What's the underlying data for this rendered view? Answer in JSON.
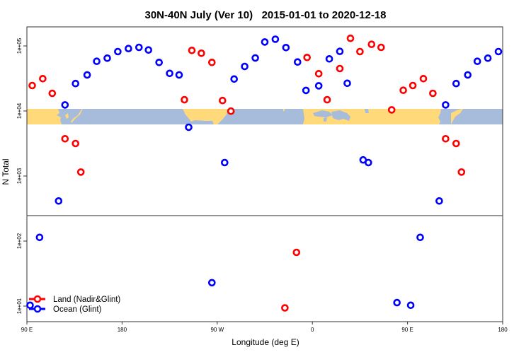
{
  "chart_data": {
    "type": "scatter",
    "title": "30N-40N July (Ver 10)   2015-01-01 to 2020-12-18",
    "xlabel": "Longitude (deg E)",
    "ylabel": "N Total",
    "yscale": "log",
    "ylim": [
      6,
      200000
    ],
    "xrange_deg_east": [
      90,
      540
    ],
    "x_tick_values": [
      90,
      180,
      270,
      360,
      450,
      540
    ],
    "x_tick_labels": [
      "90 E",
      "180",
      "90 W",
      "0",
      "90 E",
      "180"
    ],
    "y_tick_values": [
      10,
      100,
      1000,
      10000,
      100000
    ],
    "y_tick_labels": [
      "1e+01",
      "1e+02",
      "1e+03",
      "1e+04",
      "1e+05"
    ],
    "legend_position": "bottom-left",
    "colors": {
      "land": "#ff0000",
      "ocean": "#0000ff",
      "map_land": "#ffd97a",
      "map_ocean": "#a7bcdb"
    },
    "series": [
      {
        "name": "Land (Nadir&Glint)",
        "color": "#ff0000",
        "points": [
          [
            95,
            24600
          ],
          [
            105,
            31400
          ],
          [
            114,
            18700
          ],
          [
            126,
            3740
          ],
          [
            136,
            3160
          ],
          [
            141,
            1150
          ],
          [
            -121,
            14900
          ],
          [
            -114,
            85500
          ],
          [
            -105,
            77200
          ],
          [
            -95,
            55800
          ],
          [
            -85,
            14500
          ],
          [
            -77,
            9950
          ],
          [
            -26,
            9.4
          ],
          [
            -15,
            67
          ],
          [
            -5,
            66500
          ],
          [
            6,
            37400
          ],
          [
            14,
            14900
          ],
          [
            26,
            44900
          ],
          [
            36,
            131000
          ],
          [
            45,
            81800
          ],
          [
            56,
            106000
          ],
          [
            65,
            95100
          ],
          [
            75,
            10400
          ],
          [
            86,
            20800
          ]
        ]
      },
      {
        "name": "Ocean (Glint)",
        "color": "#0000ff",
        "points": [
          [
            93,
            10.3
          ],
          [
            102,
            114
          ],
          [
            120,
            413
          ],
          [
            126,
            12400
          ],
          [
            136,
            26400
          ],
          [
            147,
            35800
          ],
          [
            156,
            58100
          ],
          [
            166,
            64900
          ],
          [
            176,
            81800
          ],
          [
            -174,
            91200
          ],
          [
            -164,
            95100
          ],
          [
            -155,
            86700
          ],
          [
            -145,
            55800
          ],
          [
            -135,
            37900
          ],
          [
            -126,
            35800
          ],
          [
            -117,
            5620
          ],
          [
            -95,
            22.9
          ],
          [
            -83,
            1610
          ],
          [
            -74,
            31000
          ],
          [
            -64,
            48400
          ],
          [
            -54,
            65300
          ],
          [
            -45,
            115000
          ],
          [
            -35,
            127000
          ],
          [
            -25,
            94400
          ],
          [
            -14,
            56700
          ],
          [
            -6,
            20700
          ],
          [
            6,
            24400
          ],
          [
            16,
            63300
          ],
          [
            26,
            82500
          ],
          [
            33,
            26700
          ],
          [
            48,
            1770
          ],
          [
            53,
            1610
          ],
          [
            80,
            11.3
          ]
        ]
      }
    ]
  }
}
